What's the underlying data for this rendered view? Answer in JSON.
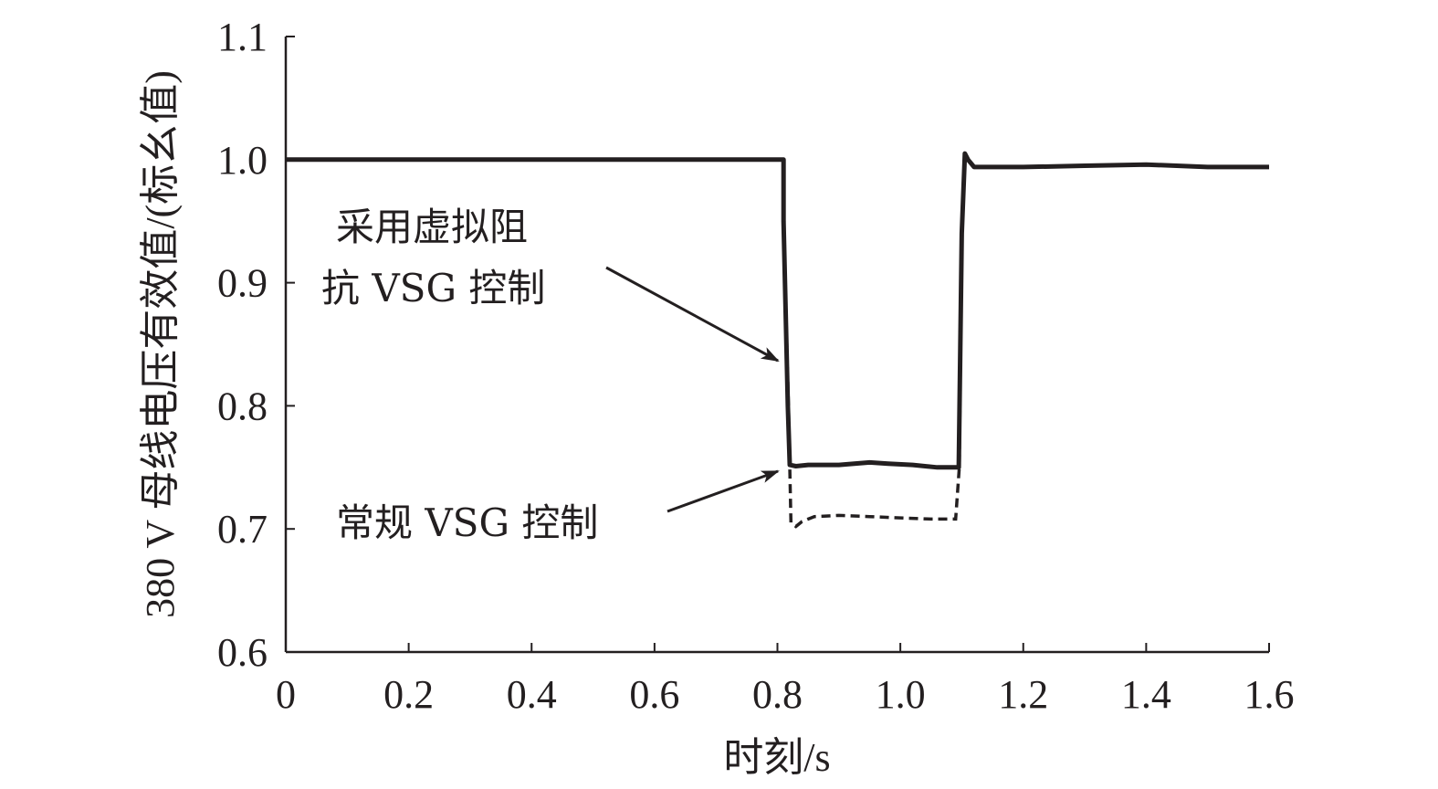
{
  "chart_data": {
    "type": "line",
    "xlabel": "时刻/s",
    "ylabel": "380 V 母线电压有效值/(标幺值)",
    "xlim": [
      0,
      1.6
    ],
    "ylim": [
      0.6,
      1.1
    ],
    "xticks": [
      "0",
      "0.2",
      "0.4",
      "0.6",
      "0.8",
      "1.0",
      "1.2",
      "1.4",
      "1.6"
    ],
    "yticks": [
      "0.6",
      "0.7",
      "0.8",
      "0.9",
      "1.0",
      "1.1"
    ],
    "grid": false,
    "series": [
      {
        "name": "采用虚拟阻抗 VSG 控制",
        "style": "solid",
        "x": [
          0,
          0.8,
          0.805,
          0.80999,
          0.81,
          0.817,
          0.82,
          0.83,
          0.85,
          0.9,
          0.95,
          0.98,
          1.02,
          1.06,
          1.095,
          1.1,
          1.105,
          1.11,
          1.12,
          1.14,
          1.2,
          1.3,
          1.4,
          1.5,
          1.6
        ],
        "y": [
          1.0,
          1.0,
          1.0,
          1.0,
          0.95,
          0.8,
          0.752,
          0.751,
          0.752,
          0.752,
          0.754,
          0.753,
          0.752,
          0.75,
          0.75,
          0.94,
          1.005,
          1.0,
          0.994,
          0.994,
          0.994,
          0.995,
          0.996,
          0.994,
          0.994
        ]
      },
      {
        "name": "常规 VSG 控制",
        "style": "dashed",
        "x": [
          0.81,
          0.818,
          0.822,
          0.83,
          0.84,
          0.86,
          0.9,
          0.95,
          1.0,
          1.05,
          1.09,
          1.096,
          1.1
        ],
        "y": [
          0.95,
          0.8,
          0.705,
          0.702,
          0.706,
          0.71,
          0.711,
          0.71,
          0.709,
          0.708,
          0.708,
          0.75,
          0.94
        ]
      }
    ],
    "annotations": [
      {
        "lines": [
          "采用虚拟阻",
          "抗 VSG 控制"
        ],
        "points_to": [
          0.815,
          0.82
        ]
      },
      {
        "lines": [
          "常规 VSG 控制"
        ],
        "points_to": [
          0.815,
          0.735
        ]
      }
    ]
  }
}
